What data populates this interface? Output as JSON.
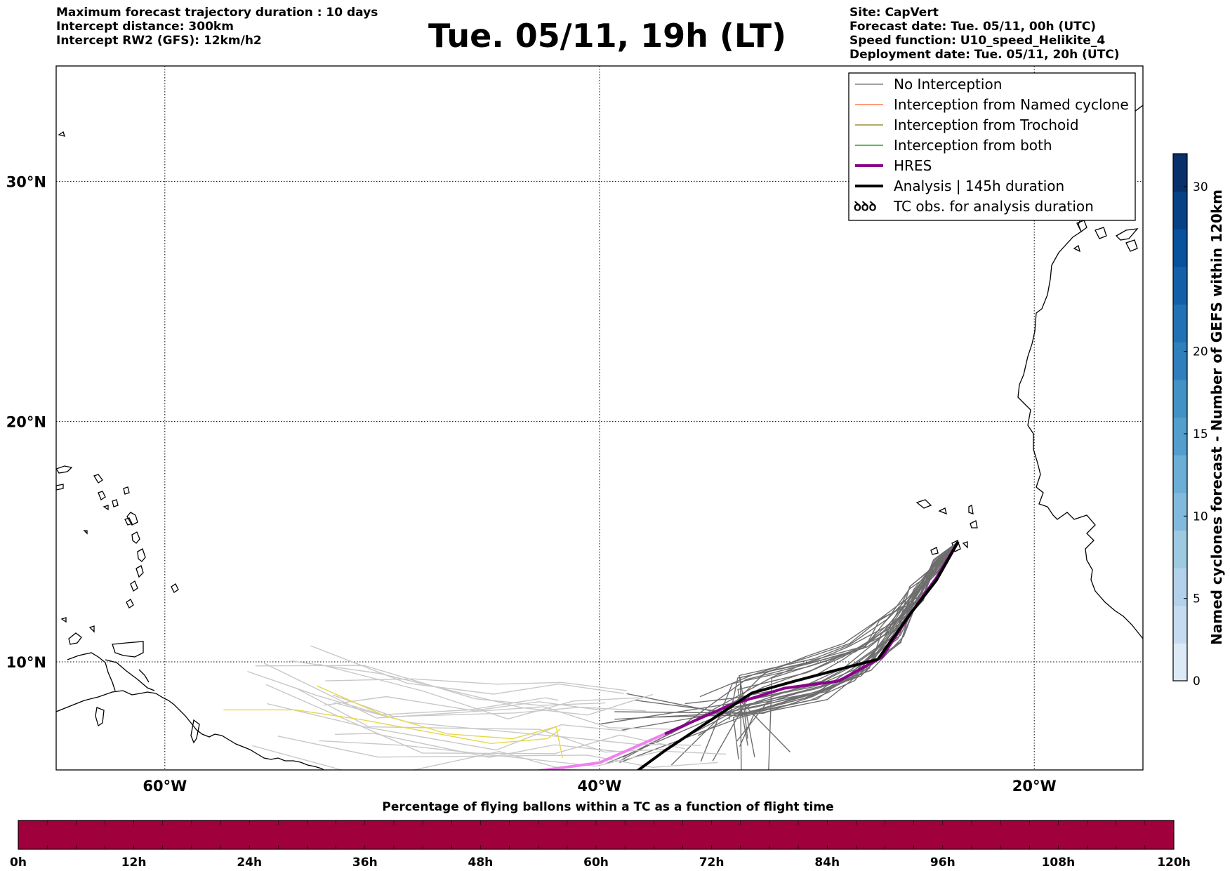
{
  "header": {
    "left_lines": [
      "Maximum forecast trajectory duration : 10 days",
      "Intercept distance: 300km",
      "Intercept RW2 (GFS):  12km/h2"
    ],
    "right_lines": [
      "Site: CapVert",
      "Forecast date: Tue. 05/11, 00h (UTC)",
      "Speed function: U10_speed_Helikite_4",
      "Deployment date: Tue. 05/11, 20h (UTC)"
    ],
    "title": "Tue. 05/11, 19h (LT)"
  },
  "map": {
    "lon_range": [
      -65,
      -15
    ],
    "lat_range": [
      5.5,
      34.8
    ],
    "lon_ticks": [
      {
        "value": -60,
        "label": "60°W"
      },
      {
        "value": -40,
        "label": "40°W"
      },
      {
        "value": -20,
        "label": "20°W"
      }
    ],
    "lat_ticks": [
      {
        "value": 30,
        "label": "30°N"
      },
      {
        "value": 20,
        "label": "20°N"
      },
      {
        "value": 10,
        "label": "10°N"
      }
    ],
    "site": {
      "lon": -23.5,
      "lat": 15.0
    },
    "colors": {
      "no_interception": "#808080",
      "named": "#ff7f50",
      "trochoid": "#9a8d37",
      "both": "#2ca02c",
      "hres": "#8b008b",
      "hres_light": "#ee82ee",
      "analysis": "#000000",
      "faint": "#c8c8c8",
      "yellow": "#e6d84a"
    }
  },
  "legend": {
    "items": [
      {
        "label": "No Interception",
        "color": "#808080",
        "width": 1.5,
        "kind": "line"
      },
      {
        "label": "Interception from Named cyclone",
        "color": "#ff7f50",
        "width": 1.5,
        "kind": "line"
      },
      {
        "label": "Interception from Trochoid",
        "color": "#9a8d37",
        "width": 1.5,
        "kind": "line"
      },
      {
        "label": "Interception from both",
        "color": "#2ca02c",
        "width": 1.5,
        "kind": "line"
      },
      {
        "label": "HRES",
        "color": "#8b008b",
        "width": 4,
        "kind": "line"
      },
      {
        "label": "Analysis | 145h duration",
        "color": "#000000",
        "width": 4,
        "kind": "line"
      },
      {
        "label": "TC obs. for analysis duration",
        "color": "#000000",
        "width": 1,
        "kind": "symbol",
        "symbol": "ꝺꝺꝺ"
      }
    ]
  },
  "colorbar_right": {
    "label": "Named cyclones forecast - Number of GEFS within 120km",
    "ticks": [
      0,
      5,
      10,
      15,
      20,
      30
    ],
    "max": 32,
    "colors": [
      "#dce9f6",
      "#c6dbef",
      "#b3d1ea",
      "#9ecae1",
      "#82badb",
      "#6baed6",
      "#539ecd",
      "#4292c6",
      "#2f7fbc",
      "#2171b5",
      "#1460a8",
      "#08519c",
      "#084286",
      "#08306b"
    ]
  },
  "colorbar_bottom": {
    "label": "Percentage of flying ballons within a TC as a function of flight time",
    "ticks": [
      "0h",
      "12h",
      "24h",
      "36h",
      "48h",
      "60h",
      "72h",
      "84h",
      "96h",
      "108h",
      "120h"
    ],
    "color": "#a0003c"
  },
  "chart_data": {
    "type": "map",
    "hres_track": [
      [
        -23.5,
        15.0
      ],
      [
        -24.5,
        13.5
      ],
      [
        -25.7,
        12.0
      ],
      [
        -27.0,
        10.2
      ],
      [
        -29.0,
        9.2
      ],
      [
        -31.5,
        8.9
      ],
      [
        -34.0,
        8.2
      ],
      [
        -37.0,
        7.0
      ],
      [
        -40.0,
        5.8
      ],
      [
        -42.5,
        5.5
      ],
      [
        -45.0,
        5.2
      ]
    ],
    "analysis_track": [
      [
        -23.5,
        15.0
      ],
      [
        -24.5,
        13.4
      ],
      [
        -25.7,
        12.0
      ],
      [
        -27.2,
        10.1
      ],
      [
        -28.5,
        9.8
      ],
      [
        -31.0,
        9.2
      ],
      [
        -33.0,
        8.7
      ],
      [
        -35.0,
        7.5
      ],
      [
        -37.0,
        6.3
      ],
      [
        -38.5,
        5.3
      ],
      [
        -40.5,
        5.0
      ],
      [
        -42.0,
        4.6
      ]
    ]
  }
}
